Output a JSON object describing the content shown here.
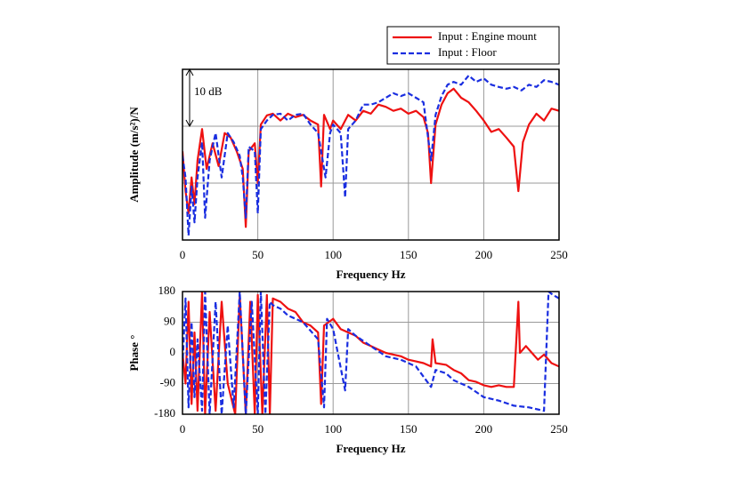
{
  "chart_data": [
    {
      "type": "line",
      "xlabel": "Frequency Hz",
      "ylabel": "Amplitude (m/s²)/N",
      "annotation": {
        "text": "10 dB",
        "from": 20,
        "to": 30
      },
      "xlim": [
        0,
        250
      ],
      "xticks": [
        0,
        50,
        100,
        150,
        200,
        250
      ],
      "ylim": [
        0,
        30
      ],
      "yticks": [
        10,
        20
      ],
      "ytick_labels": false,
      "grid": true,
      "legend": "top-right-outside",
      "series": [
        {
          "name": "Input : Engine mount",
          "color": "#ee1111",
          "dash": false,
          "x": [
            0,
            2,
            4,
            6,
            8,
            10,
            13,
            16,
            20,
            24,
            28,
            32,
            36,
            40,
            42,
            44,
            48,
            50,
            52,
            56,
            60,
            65,
            70,
            75,
            80,
            85,
            90,
            92,
            94,
            98,
            100,
            105,
            110,
            115,
            120,
            125,
            130,
            135,
            140,
            145,
            150,
            155,
            160,
            163,
            165,
            168,
            172,
            176,
            180,
            185,
            190,
            195,
            200,
            205,
            210,
            215,
            220,
            223,
            226,
            230,
            235,
            240,
            245,
            250
          ],
          "values": [
            15.6,
            8.6,
            4.7,
            11,
            6.3,
            14,
            19.5,
            12.5,
            17,
            13,
            18.8,
            18,
            15.6,
            12.5,
            2.3,
            15.6,
            17,
            10,
            20.3,
            21.9,
            22.2,
            21,
            22.2,
            21.6,
            22,
            21,
            20.3,
            9.4,
            22,
            19.5,
            21,
            19.5,
            22,
            21,
            22.7,
            22.2,
            23.8,
            23.4,
            22.7,
            23.1,
            22.2,
            22.7,
            21.6,
            18.8,
            10,
            20.3,
            23.8,
            25.8,
            26.6,
            25,
            24.2,
            22.7,
            21,
            19,
            19.5,
            18,
            16.4,
            8.6,
            17.2,
            20.3,
            22.2,
            21,
            23.1,
            22.7
          ]
        },
        {
          "name": "Input : Floor",
          "color": "#1a2ee0",
          "dash": true,
          "x": [
            0,
            2,
            4,
            6,
            8,
            10,
            13,
            15,
            18,
            22,
            26,
            30,
            34,
            38,
            40,
            42,
            44,
            48,
            50,
            52,
            56,
            60,
            65,
            70,
            75,
            80,
            85,
            90,
            95,
            98,
            100,
            105,
            108,
            110,
            115,
            120,
            125,
            130,
            135,
            140,
            145,
            150,
            155,
            160,
            165,
            168,
            172,
            176,
            180,
            185,
            190,
            195,
            200,
            205,
            210,
            215,
            220,
            225,
            230,
            235,
            240,
            245,
            250
          ],
          "values": [
            14.8,
            11,
            0.8,
            9.4,
            3.1,
            11,
            17.2,
            3.9,
            14,
            18.8,
            11,
            18.8,
            17.2,
            14.8,
            11,
            3.9,
            16.4,
            15.6,
            4.7,
            19.5,
            21,
            22,
            22.2,
            21,
            22,
            22.2,
            20.3,
            18.8,
            11,
            18.8,
            20.3,
            18.8,
            7.5,
            19.5,
            21,
            23.8,
            23.8,
            24.2,
            25,
            25.8,
            25.3,
            25.8,
            25,
            24.2,
            14,
            22,
            25.3,
            27.3,
            27.8,
            27.3,
            28.9,
            27.8,
            28.4,
            27.3,
            26.9,
            26.6,
            26.9,
            26.3,
            27.3,
            26.9,
            28.1,
            27.8,
            27.3
          ]
        }
      ]
    },
    {
      "type": "line",
      "xlabel": "Frequency Hz",
      "ylabel": "Phase °",
      "xlim": [
        0,
        250
      ],
      "xticks": [
        0,
        50,
        100,
        150,
        200,
        250
      ],
      "ylim": [
        -180,
        180
      ],
      "yticks": [
        -180,
        -90,
        0,
        90,
        180
      ],
      "grid": true,
      "series": [
        {
          "color": "#ee1111",
          "dash": false,
          "x": [
            0,
            2,
            4,
            6,
            8,
            10,
            13,
            15,
            18,
            22,
            26,
            30,
            35,
            38,
            42,
            45,
            48,
            50,
            53,
            56,
            58,
            60,
            65,
            70,
            75,
            80,
            85,
            90,
            92,
            94,
            100,
            105,
            110,
            115,
            120,
            125,
            130,
            135,
            140,
            145,
            150,
            155,
            160,
            165,
            166,
            168,
            175,
            180,
            185,
            190,
            195,
            200,
            205,
            210,
            215,
            220,
            223,
            224,
            228,
            232,
            236,
            240,
            245,
            250
          ],
          "values": [
            0,
            -90,
            150,
            -150,
            60,
            -170,
            180,
            -180,
            120,
            -170,
            150,
            -90,
            -180,
            170,
            -180,
            150,
            -180,
            170,
            -180,
            170,
            -180,
            160,
            150,
            130,
            120,
            90,
            80,
            60,
            -150,
            80,
            100,
            70,
            60,
            50,
            30,
            20,
            10,
            0,
            -5,
            -10,
            -20,
            -25,
            -30,
            -40,
            40,
            -30,
            -35,
            -50,
            -60,
            -80,
            -85,
            -95,
            -100,
            -95,
            -100,
            -100,
            150,
            0,
            20,
            0,
            -20,
            -5,
            -30,
            -40
          ]
        },
        {
          "color": "#1a2ee0",
          "dash": true,
          "x": [
            0,
            2,
            4,
            6,
            8,
            10,
            13,
            15,
            18,
            22,
            26,
            30,
            34,
            38,
            42,
            46,
            50,
            52,
            55,
            58,
            60,
            65,
            70,
            80,
            90,
            94,
            96,
            100,
            108,
            110,
            115,
            125,
            135,
            145,
            155,
            165,
            168,
            175,
            180,
            190,
            200,
            210,
            220,
            230,
            240,
            243,
            246,
            250
          ],
          "values": [
            -40,
            160,
            -160,
            90,
            -130,
            40,
            -170,
            180,
            -180,
            150,
            -180,
            80,
            -160,
            180,
            -180,
            150,
            -180,
            180,
            -180,
            150,
            140,
            130,
            110,
            90,
            40,
            -160,
            100,
            70,
            -110,
            70,
            50,
            20,
            -10,
            -20,
            -40,
            -100,
            -50,
            -60,
            -80,
            -100,
            -130,
            -140,
            -155,
            -160,
            -170,
            180,
            170,
            160
          ]
        }
      ]
    }
  ]
}
